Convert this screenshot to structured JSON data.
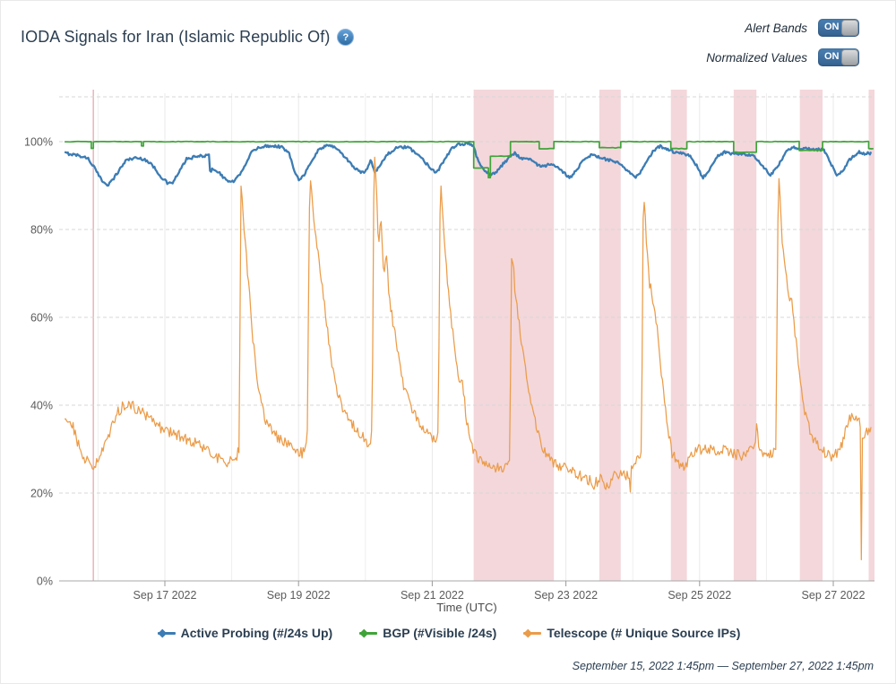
{
  "header": {
    "title": "IODA Signals for Iran (Islamic Republic Of)",
    "help_icon": "?",
    "toggles": [
      {
        "id": "alert-bands",
        "label": "Alert Bands",
        "state": "ON"
      },
      {
        "id": "normalized-values",
        "label": "Normalized Values",
        "state": "ON"
      }
    ]
  },
  "footer": {
    "range_text": "September 15, 2022 1:45pm — September 27, 2022 1:45pm"
  },
  "colors": {
    "accent_blue": "#3c7cb4",
    "band_pink": "#f3d7db",
    "alert_line_pink": "#e8b4ba",
    "grid": "#d7d7d7",
    "day_grid": "#efefef",
    "axis": "#aaaaaa",
    "tick_text": "#5b5b5b"
  },
  "chart_data": {
    "type": "line",
    "xlabel": "Time (UTC)",
    "x_unit": "days_since_2022-09-15T00:00_UTC",
    "x_range": [
      0.5,
      12.62
    ],
    "ylim": [
      0,
      111
    ],
    "grid": "dashed-horizontal",
    "legend_position": "bottom-center",
    "x_ticks": [
      {
        "t": 2,
        "label": "Sep 17 2022"
      },
      {
        "t": 4,
        "label": "Sep 19 2022"
      },
      {
        "t": 6,
        "label": "Sep 21 2022"
      },
      {
        "t": 8,
        "label": "Sep 23 2022"
      },
      {
        "t": 10,
        "label": "Sep 25 2022"
      },
      {
        "t": 12,
        "label": "Sep 27 2022"
      }
    ],
    "y_ticks": [
      {
        "v": 0,
        "label": "0%"
      },
      {
        "v": 20,
        "label": "20%"
      },
      {
        "v": 40,
        "label": "40%"
      },
      {
        "v": 60,
        "label": "60%"
      },
      {
        "v": 80,
        "label": "80%"
      },
      {
        "v": 100,
        "label": "100%"
      }
    ],
    "alert_line_t": 0.93,
    "alert_bands": [
      [
        6.62,
        7.82
      ],
      [
        8.5,
        8.82
      ],
      [
        9.57,
        9.81
      ],
      [
        10.51,
        10.85
      ],
      [
        11.5,
        11.84
      ],
      [
        12.53,
        12.62
      ]
    ],
    "series": [
      {
        "name": "Active Probing (#/24s Up)",
        "id": "active-probing",
        "color": "#3c7cb4",
        "style": "noisy-line",
        "stroke_width": 2.3,
        "noise": 0.32,
        "anchors": [
          [
            0.5,
            97.4
          ],
          [
            0.7,
            96.9
          ],
          [
            0.85,
            96.2
          ],
          [
            0.95,
            94.0
          ],
          [
            1.02,
            92.0
          ],
          [
            1.08,
            90.8
          ],
          [
            1.15,
            90.2
          ],
          [
            1.22,
            91.3
          ],
          [
            1.32,
            93.6
          ],
          [
            1.42,
            95.8
          ],
          [
            1.55,
            96.3
          ],
          [
            1.7,
            96.0
          ],
          [
            1.82,
            94.5
          ],
          [
            1.95,
            91.9
          ],
          [
            2.05,
            90.4
          ],
          [
            2.12,
            90.7
          ],
          [
            2.22,
            93.2
          ],
          [
            2.32,
            96.0
          ],
          [
            2.45,
            96.5
          ],
          [
            2.58,
            96.8
          ],
          [
            2.66,
            96.9
          ],
          [
            2.67,
            93.0
          ],
          [
            2.72,
            93.9
          ],
          [
            2.8,
            93.1
          ],
          [
            2.9,
            91.5
          ],
          [
            3.0,
            90.7
          ],
          [
            3.08,
            91.6
          ],
          [
            3.18,
            94.2
          ],
          [
            3.3,
            97.6
          ],
          [
            3.42,
            98.8
          ],
          [
            3.6,
            99.1
          ],
          [
            3.75,
            98.8
          ],
          [
            3.86,
            97.2
          ],
          [
            3.94,
            93.5
          ],
          [
            4.0,
            91.4
          ],
          [
            4.07,
            92.2
          ],
          [
            4.18,
            95.0
          ],
          [
            4.3,
            98.2
          ],
          [
            4.42,
            99.2
          ],
          [
            4.55,
            98.8
          ],
          [
            4.7,
            96.4
          ],
          [
            4.85,
            93.8
          ],
          [
            4.95,
            92.9
          ],
          [
            5.02,
            93.6
          ],
          [
            5.08,
            95.9
          ],
          [
            5.14,
            93.2
          ],
          [
            5.2,
            94.1
          ],
          [
            5.32,
            97.0
          ],
          [
            5.46,
            98.5
          ],
          [
            5.62,
            98.8
          ],
          [
            5.78,
            97.2
          ],
          [
            5.94,
            94.6
          ],
          [
            6.06,
            92.9
          ],
          [
            6.16,
            95.2
          ],
          [
            6.28,
            98.2
          ],
          [
            6.4,
            99.4
          ],
          [
            6.55,
            99.6
          ],
          [
            6.62,
            99.2
          ],
          [
            6.66,
            96.6
          ],
          [
            6.72,
            94.6
          ],
          [
            6.8,
            93.2
          ],
          [
            6.88,
            92.4
          ],
          [
            6.96,
            93.1
          ],
          [
            7.06,
            94.9
          ],
          [
            7.16,
            96.6
          ],
          [
            7.23,
            97.4
          ],
          [
            7.33,
            96.3
          ],
          [
            7.46,
            96.0
          ],
          [
            7.56,
            94.9
          ],
          [
            7.66,
            94.3
          ],
          [
            7.76,
            94.8
          ],
          [
            7.86,
            94.2
          ],
          [
            7.96,
            93.0
          ],
          [
            8.06,
            91.8
          ],
          [
            8.16,
            93.6
          ],
          [
            8.28,
            96.3
          ],
          [
            8.4,
            97.0
          ],
          [
            8.52,
            96.3
          ],
          [
            8.66,
            95.7
          ],
          [
            8.8,
            95.0
          ],
          [
            8.94,
            93.0
          ],
          [
            9.05,
            91.9
          ],
          [
            9.17,
            94.2
          ],
          [
            9.3,
            97.8
          ],
          [
            9.41,
            99.0
          ],
          [
            9.52,
            98.2
          ],
          [
            9.62,
            97.6
          ],
          [
            9.74,
            97.3
          ],
          [
            9.86,
            96.7
          ],
          [
            9.96,
            94.4
          ],
          [
            10.05,
            91.8
          ],
          [
            10.15,
            93.6
          ],
          [
            10.27,
            96.8
          ],
          [
            10.38,
            97.6
          ],
          [
            10.52,
            97.2
          ],
          [
            10.66,
            97.0
          ],
          [
            10.8,
            96.8
          ],
          [
            10.94,
            94.6
          ],
          [
            11.06,
            92.2
          ],
          [
            11.18,
            94.6
          ],
          [
            11.3,
            97.8
          ],
          [
            11.4,
            98.6
          ],
          [
            11.55,
            98.4
          ],
          [
            11.7,
            98.3
          ],
          [
            11.85,
            98.2
          ],
          [
            11.94,
            95.8
          ],
          [
            12.05,
            92.2
          ],
          [
            12.15,
            93.6
          ],
          [
            12.27,
            96.4
          ],
          [
            12.38,
            97.6
          ],
          [
            12.48,
            97.2
          ],
          [
            12.58,
            97.5
          ]
        ]
      },
      {
        "name": "BGP (#Visible /24s)",
        "id": "bgp",
        "color": "#3fa438",
        "style": "step-line",
        "stroke_width": 1.7,
        "noise": 0.07,
        "segments": [
          [
            0.5,
            0.9,
            100
          ],
          [
            0.9,
            0.93,
            98.5
          ],
          [
            0.93,
            1.65,
            100
          ],
          [
            1.65,
            1.68,
            99
          ],
          [
            1.68,
            6.62,
            100
          ],
          [
            6.62,
            6.84,
            94
          ],
          [
            6.84,
            6.87,
            91.8
          ],
          [
            6.87,
            7.17,
            96.7
          ],
          [
            7.17,
            7.6,
            100
          ],
          [
            7.6,
            7.82,
            98.4
          ],
          [
            7.82,
            8.5,
            100
          ],
          [
            8.5,
            8.82,
            98.6
          ],
          [
            8.82,
            9.57,
            100
          ],
          [
            9.57,
            9.81,
            98.4
          ],
          [
            9.81,
            10.51,
            100
          ],
          [
            10.51,
            10.85,
            97.6
          ],
          [
            10.85,
            11.49,
            100
          ],
          [
            11.49,
            11.84,
            98.0
          ],
          [
            11.84,
            12.53,
            100
          ],
          [
            12.53,
            12.6,
            98.4
          ]
        ]
      },
      {
        "name": "Telescope (# Unique Source IPs)",
        "id": "telescope",
        "color": "#eb9c49",
        "style": "noisy-line",
        "stroke_width": 1.25,
        "noise": 1.25,
        "anchors": [
          [
            0.5,
            37
          ],
          [
            0.62,
            35.5
          ],
          [
            0.7,
            31.5
          ],
          [
            0.8,
            28
          ],
          [
            0.9,
            26.5
          ],
          [
            0.95,
            26
          ],
          [
            1.05,
            29
          ],
          [
            1.15,
            33
          ],
          [
            1.3,
            38.5
          ],
          [
            1.42,
            40.5
          ],
          [
            1.55,
            39.5
          ],
          [
            1.7,
            38
          ],
          [
            1.85,
            35.5
          ],
          [
            2.0,
            34.5
          ],
          [
            2.15,
            33.5
          ],
          [
            2.3,
            32.5
          ],
          [
            2.5,
            31
          ],
          [
            2.7,
            29
          ],
          [
            2.9,
            27
          ],
          [
            3.05,
            27.5
          ],
          [
            3.11,
            30
          ],
          [
            3.14,
            91
          ],
          [
            3.19,
            80
          ],
          [
            3.24,
            70
          ],
          [
            3.3,
            58
          ],
          [
            3.36,
            48
          ],
          [
            3.42,
            42
          ],
          [
            3.5,
            37
          ],
          [
            3.62,
            33.5
          ],
          [
            3.78,
            31.5
          ],
          [
            3.95,
            30
          ],
          [
            4.05,
            29
          ],
          [
            4.13,
            32
          ],
          [
            4.17,
            94
          ],
          [
            4.22,
            84
          ],
          [
            4.26,
            78
          ],
          [
            4.31,
            72
          ],
          [
            4.37,
            65
          ],
          [
            4.44,
            56
          ],
          [
            4.52,
            47
          ],
          [
            4.62,
            41
          ],
          [
            4.74,
            37
          ],
          [
            4.88,
            34
          ],
          [
            5.0,
            32
          ],
          [
            5.07,
            31
          ],
          [
            5.1,
            34
          ],
          [
            5.13,
            100
          ],
          [
            5.17,
            87
          ],
          [
            5.2,
            75
          ],
          [
            5.23,
            84
          ],
          [
            5.27,
            70
          ],
          [
            5.31,
            74
          ],
          [
            5.36,
            64
          ],
          [
            5.43,
            57
          ],
          [
            5.5,
            51
          ],
          [
            5.58,
            44
          ],
          [
            5.68,
            40
          ],
          [
            5.8,
            36.5
          ],
          [
            5.94,
            33.5
          ],
          [
            6.04,
            31.5
          ],
          [
            6.09,
            34
          ],
          [
            6.12,
            92.5
          ],
          [
            6.18,
            77
          ],
          [
            6.25,
            64
          ],
          [
            6.31,
            56
          ],
          [
            6.37,
            49
          ],
          [
            6.42,
            44
          ],
          [
            6.45,
            46
          ],
          [
            6.5,
            38
          ],
          [
            6.56,
            33.5
          ],
          [
            6.63,
            29
          ],
          [
            6.75,
            26.5
          ],
          [
            6.9,
            25.8
          ],
          [
            7.05,
            25.5
          ],
          [
            7.13,
            26.5
          ],
          [
            7.16,
            28
          ],
          [
            7.19,
            76.5
          ],
          [
            7.25,
            64
          ],
          [
            7.31,
            57
          ],
          [
            7.38,
            50
          ],
          [
            7.45,
            43
          ],
          [
            7.53,
            37
          ],
          [
            7.62,
            31.5
          ],
          [
            7.72,
            28.5
          ],
          [
            7.85,
            26.5
          ],
          [
            8.0,
            25.5
          ],
          [
            8.15,
            24.5
          ],
          [
            8.3,
            23.5
          ],
          [
            8.42,
            22
          ],
          [
            8.52,
            23.5
          ],
          [
            8.62,
            21.5
          ],
          [
            8.72,
            24
          ],
          [
            8.85,
            24.5
          ],
          [
            8.95,
            23.5
          ],
          [
            8.965,
            19.5
          ],
          [
            8.98,
            25
          ],
          [
            9.06,
            27.5
          ],
          [
            9.13,
            29
          ],
          [
            9.16,
            91
          ],
          [
            9.21,
            76
          ],
          [
            9.25,
            68
          ],
          [
            9.29,
            64.5
          ],
          [
            9.33,
            62
          ],
          [
            9.38,
            55
          ],
          [
            9.45,
            44
          ],
          [
            9.52,
            35
          ],
          [
            9.58,
            29.5
          ],
          [
            9.67,
            26.5
          ],
          [
            9.76,
            26
          ],
          [
            9.84,
            27.5
          ],
          [
            9.95,
            29.5
          ],
          [
            10.08,
            30.5
          ],
          [
            10.2,
            29.5
          ],
          [
            10.35,
            30
          ],
          [
            10.5,
            29
          ],
          [
            10.62,
            28.5
          ],
          [
            10.75,
            29.5
          ],
          [
            10.83,
            31
          ],
          [
            10.85,
            36
          ],
          [
            10.88,
            31
          ],
          [
            10.95,
            29.5
          ],
          [
            11.08,
            28.5
          ],
          [
            11.14,
            29.5
          ],
          [
            11.18,
            94
          ],
          [
            11.23,
            79
          ],
          [
            11.27,
            73
          ],
          [
            11.31,
            67
          ],
          [
            11.34,
            63
          ],
          [
            11.37,
            66
          ],
          [
            11.42,
            58
          ],
          [
            11.48,
            49
          ],
          [
            11.53,
            42
          ],
          [
            11.6,
            36.5
          ],
          [
            11.68,
            33
          ],
          [
            11.78,
            31
          ],
          [
            11.88,
            29
          ],
          [
            11.98,
            28
          ],
          [
            12.08,
            29.5
          ],
          [
            12.15,
            32
          ],
          [
            12.22,
            36
          ],
          [
            12.28,
            38
          ],
          [
            12.33,
            36.5
          ],
          [
            12.38,
            37
          ],
          [
            12.41,
            35.5
          ],
          [
            12.42,
            6
          ],
          [
            12.435,
            32
          ],
          [
            12.5,
            34
          ],
          [
            12.58,
            34.5
          ]
        ]
      }
    ]
  }
}
